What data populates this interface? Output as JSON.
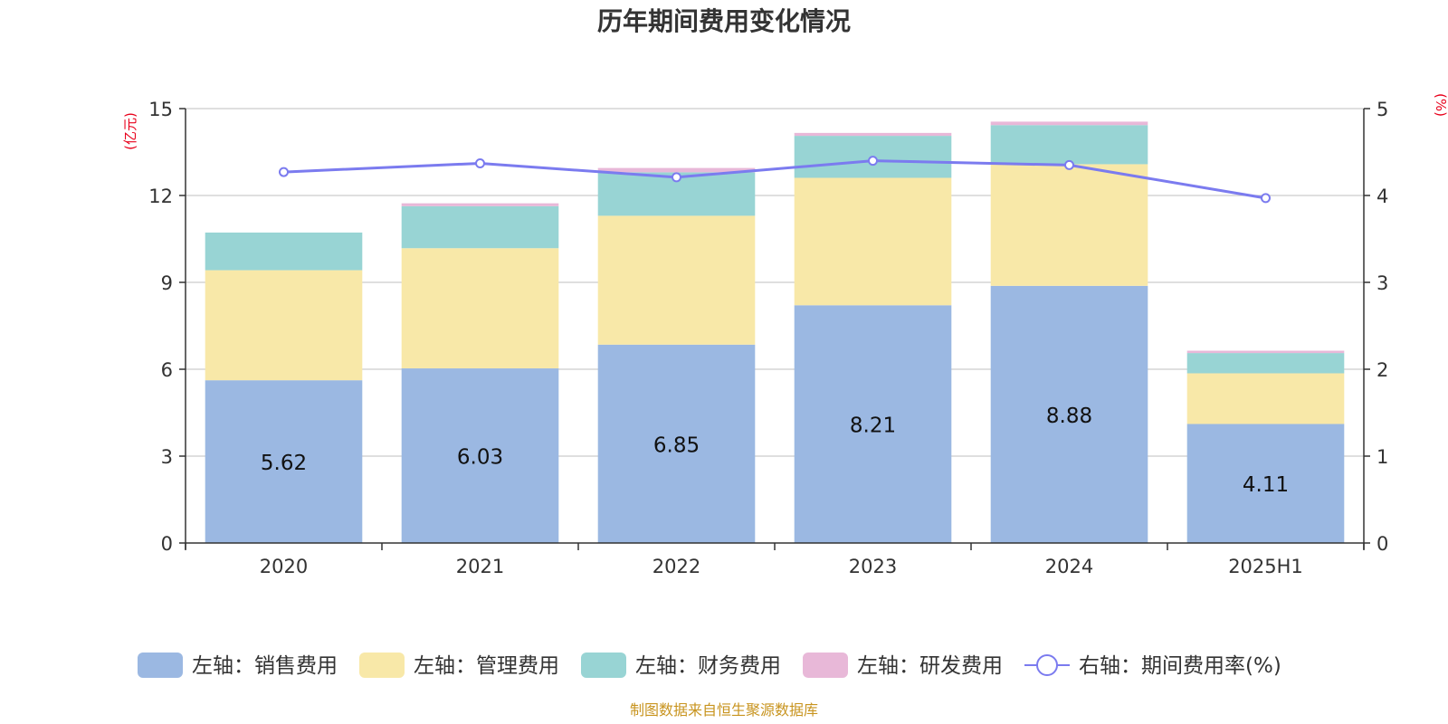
{
  "chart_data": {
    "type": "bar",
    "stacked": true,
    "title": "历年期间费用变化情况",
    "categories": [
      "2020",
      "2021",
      "2022",
      "2023",
      "2024",
      "2025H1"
    ],
    "left_axis": {
      "unit": "(亿元)",
      "ylim": [
        0,
        15
      ],
      "ticks": [
        "0",
        "3",
        "6",
        "9",
        "12",
        "15"
      ]
    },
    "right_axis": {
      "unit": "(%)",
      "ylim": [
        0,
        5
      ],
      "ticks": [
        "0",
        "1",
        "2",
        "3",
        "4",
        "5"
      ]
    },
    "grid": true,
    "legend_position": "bottom",
    "series": [
      {
        "name": "左轴：销售费用",
        "type": "bar",
        "axis": "left",
        "color": "#9bb8e2",
        "values": [
          5.62,
          6.03,
          6.85,
          8.21,
          8.88,
          4.11
        ],
        "labels": [
          "5.62",
          "6.03",
          "6.85",
          "8.21",
          "8.88",
          "4.11"
        ]
      },
      {
        "name": "左轴：管理费用",
        "type": "bar",
        "axis": "left",
        "color": "#f8e8a8",
        "values": [
          3.8,
          4.15,
          4.45,
          4.4,
          4.2,
          1.75
        ]
      },
      {
        "name": "左轴：财务费用",
        "type": "bar",
        "axis": "left",
        "color": "#98d4d4",
        "values": [
          1.3,
          1.45,
          1.5,
          1.45,
          1.35,
          0.7
        ]
      },
      {
        "name": "左轴：研发费用",
        "type": "bar",
        "axis": "left",
        "color": "#e8b8d8",
        "values": [
          0.0,
          0.1,
          0.15,
          0.1,
          0.12,
          0.08
        ]
      },
      {
        "name": "右轴：期间费用率(%)",
        "type": "line",
        "axis": "right",
        "color": "#7b7bef",
        "values": [
          4.27,
          4.37,
          4.21,
          4.4,
          4.35,
          3.97
        ]
      }
    ]
  },
  "source_text": "制图数据来自恒生聚源数据库"
}
